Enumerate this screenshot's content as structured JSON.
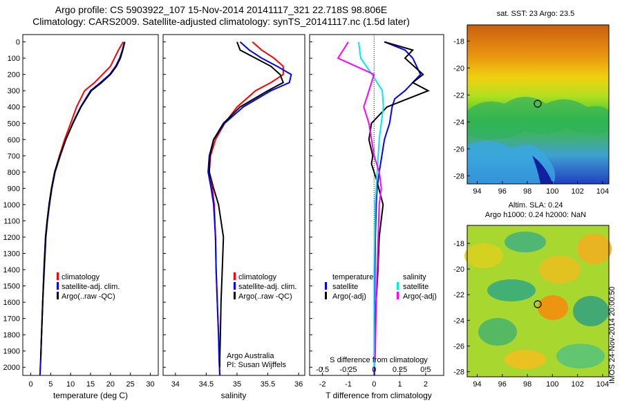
{
  "header": {
    "line1": "Argo profile: CS 5903922_107 15-Nov-2014 20141117_321 22.718S 98.806E",
    "line2": "Climatology: CARS2009. Satellite-adjusted climatology: synTS_20141117.nc (1.5d later)"
  },
  "colors": {
    "climatology": "#ff0000",
    "satellite_adj": "#0000ff",
    "argo": "#000000",
    "sal_satellite": "#00e8f0",
    "sal_argo": "#ff00ff"
  },
  "profiles": {
    "depth_ticks": [
      "0",
      "100",
      "200",
      "300",
      "400",
      "500",
      "600",
      "700",
      "800",
      "900",
      "1000",
      "1100",
      "1200",
      "1300",
      "1400",
      "1500",
      "1600",
      "1700",
      "1800",
      "1900",
      "2000"
    ],
    "temp_ticks": [
      "0",
      "5",
      "10",
      "15",
      "20",
      "25",
      "30"
    ],
    "temp_xlabel": "temperature (deg C)",
    "sal_ticks": [
      "34",
      "34.5",
      "35",
      "35.5",
      "36"
    ],
    "sal_xlabel": "salinity",
    "diff_top_ticks": [
      "-0.5",
      "-0.25",
      "0",
      "0.25",
      "0.5"
    ],
    "diff_top_label": "S difference from climatology",
    "diff_bottom_ticks": [
      "-2",
      "-1",
      "0",
      "1",
      "2"
    ],
    "diff_bottom_label": "T difference from climatology",
    "legend_temp": [
      "climatology",
      "satellite-adj. clim.",
      "Argo(..raw -QC)"
    ],
    "legend_sal": [
      "climatology",
      "satellite-adj. clim.",
      "Argo(..raw -QC)"
    ],
    "diff_legend": {
      "temp_head": "temperature",
      "sal_head": "salinity",
      "temp_items": [
        "satellite",
        "Argo(-adj)"
      ],
      "sal_items": [
        "satellite",
        "Argo(-adj)"
      ]
    },
    "credit1": "Argo Australia",
    "credit2": "PI: Susan Wijffels"
  },
  "maps": {
    "sst_title": "sat. SST: 23 Argo: 23.5",
    "sla_title1": "Altim. SLA: 0.24",
    "sla_title2": "Argo h1000: 0.24 h2000: NaN",
    "sst_lat_ticks": [
      "-18",
      "-20",
      "-22",
      "-24",
      "-26",
      "-28"
    ],
    "sla_lat_ticks": [
      "-18",
      "-20",
      "-22",
      "-24",
      "-26",
      "-28"
    ],
    "lon_ticks": [
      "94",
      "96",
      "98",
      "100",
      "102",
      "104"
    ],
    "stamp": "IMOS 24-Nov-2014 20:00:50"
  },
  "chart_data": [
    {
      "type": "line",
      "title": "",
      "xlabel": "temperature (deg C)",
      "ylabel": "",
      "xlim": [
        -2,
        32
      ],
      "ylim": [
        2050,
        0
      ],
      "series": [
        {
          "name": "climatology",
          "x": [
            23.2,
            22,
            21,
            20,
            18,
            16,
            13.5,
            11.5,
            10,
            8.5,
            7.2,
            6,
            5.2,
            4.6,
            4.1,
            3.7,
            3.3,
            3,
            2.7,
            2.5,
            2.3
          ],
          "depth": [
            0,
            50,
            100,
            150,
            200,
            250,
            300,
            400,
            500,
            600,
            700,
            800,
            900,
            1000,
            1100,
            1200,
            1400,
            1600,
            1800,
            1950,
            2050
          ]
        },
        {
          "name": "satellite-adj. clim.",
          "x": [
            23.5,
            23,
            22.3,
            21.3,
            19.8,
            17.5,
            15,
            12.5,
            10.5,
            8.8,
            7.4,
            6.1,
            5.3,
            4.7,
            4.2,
            3.8,
            3.4,
            3,
            2.7,
            2.5,
            2.3
          ],
          "depth": [
            0,
            50,
            100,
            150,
            200,
            250,
            300,
            400,
            500,
            600,
            700,
            800,
            900,
            1000,
            1100,
            1200,
            1400,
            1600,
            1800,
            1950,
            2050
          ]
        },
        {
          "name": "Argo(..raw -QC)",
          "x": [
            23.6,
            23.1,
            22.5,
            21.5,
            20,
            17.8,
            15.2,
            12.6,
            10.6,
            8.8,
            7.3,
            6,
            5.2,
            4.6,
            4.1,
            3.7,
            3.3,
            3,
            2.7,
            2.5
          ],
          "depth": [
            0,
            50,
            100,
            150,
            200,
            250,
            300,
            400,
            500,
            600,
            700,
            800,
            900,
            1000,
            1100,
            1200,
            1400,
            1600,
            1800,
            1950
          ]
        }
      ]
    },
    {
      "type": "line",
      "title": "",
      "xlabel": "salinity",
      "ylabel": "",
      "xlim": [
        33.8,
        36.1
      ],
      "ylim": [
        2050,
        0
      ],
      "series": [
        {
          "name": "climatology",
          "x": [
            35.25,
            35.4,
            35.6,
            35.75,
            35.75,
            35.55,
            35.3,
            35.0,
            34.8,
            34.65,
            34.57,
            34.55,
            34.6,
            34.63,
            34.65,
            34.66,
            34.68,
            34.7,
            34.71,
            34.72
          ],
          "depth": [
            0,
            50,
            100,
            150,
            200,
            250,
            300,
            400,
            500,
            600,
            700,
            800,
            900,
            1000,
            1200,
            1400,
            1600,
            1800,
            1950,
            2050
          ]
        },
        {
          "name": "satellite-adj. clim.",
          "x": [
            35.05,
            35.2,
            35.4,
            35.65,
            35.88,
            35.85,
            35.55,
            35.1,
            34.8,
            34.62,
            34.55,
            34.53,
            34.58,
            34.62,
            34.65,
            34.66,
            34.68,
            34.7,
            34.71,
            34.72
          ],
          "depth": [
            0,
            50,
            100,
            150,
            200,
            250,
            300,
            400,
            500,
            600,
            700,
            800,
            900,
            1000,
            1200,
            1400,
            1600,
            1800,
            1950,
            2050
          ]
        },
        {
          "name": "Argo(..raw -QC)",
          "x": [
            35.0,
            35.05,
            35.3,
            35.55,
            35.7,
            35.75,
            35.5,
            35.05,
            34.78,
            34.62,
            34.56,
            34.55,
            34.62,
            34.7,
            34.78,
            34.76,
            34.74,
            34.73,
            34.72,
            34.72
          ],
          "depth": [
            0,
            50,
            100,
            150,
            200,
            250,
            300,
            400,
            500,
            600,
            700,
            800,
            900,
            1000,
            1200,
            1400,
            1600,
            1800,
            1950,
            2000
          ]
        }
      ]
    },
    {
      "type": "line",
      "title": "",
      "xlabel": "T difference from climatology",
      "ylabel": "",
      "xlim": [
        -2.5,
        2.7
      ],
      "ylim": [
        2050,
        0
      ],
      "series": [
        {
          "name": "temperature satellite",
          "x": [
            0.4,
            1.2,
            1.5,
            1.8,
            1.2,
            0.8,
            0.7,
            0.6,
            0.4,
            0.3,
            0.2,
            0.12,
            0.08,
            0.05,
            0.03,
            0.02,
            0.01,
            0.01
          ],
          "depth": [
            0,
            50,
            100,
            200,
            300,
            350,
            400,
            500,
            600,
            700,
            800,
            900,
            1000,
            1200,
            1400,
            1600,
            1800,
            2050
          ]
        },
        {
          "name": "temperature Argo(-adj)",
          "x": [
            0.4,
            1.5,
            1.2,
            1.9,
            1.5,
            2.1,
            0.5,
            -0.1,
            -0.2,
            -0.05,
            -0.1,
            0.1,
            0.35,
            0.2,
            0.15,
            0.08,
            0.04,
            0.02
          ],
          "depth": [
            0,
            50,
            100,
            200,
            250,
            300,
            400,
            500,
            600,
            700,
            750,
            850,
            1000,
            1200,
            1400,
            1600,
            1800,
            1950
          ]
        },
        {
          "name": "salinity satellite",
          "x": [
            -0.15,
            -0.13,
            -0.02,
            0.08,
            0.09,
            0.07,
            0.05,
            0.04,
            0.03,
            0.02,
            0.01,
            0.005,
            0.0,
            0.0,
            0.0,
            0.0
          ],
          "depth": [
            0,
            100,
            200,
            300,
            400,
            500,
            600,
            700,
            800,
            900,
            1000,
            1200,
            1400,
            1600,
            1800,
            2000
          ]
        },
        {
          "name": "salinity Argo(-adj)",
          "x": [
            -0.25,
            -0.3,
            -0.35,
            0.0,
            -0.05,
            -0.1,
            -0.05,
            0.0,
            0.05,
            0.07,
            0.05,
            0.04,
            0.03,
            0.02,
            0.01
          ],
          "depth": [
            0,
            50,
            100,
            200,
            300,
            400,
            500,
            700,
            800,
            900,
            1000,
            1200,
            1400,
            1600,
            1950
          ]
        }
      ]
    }
  ]
}
